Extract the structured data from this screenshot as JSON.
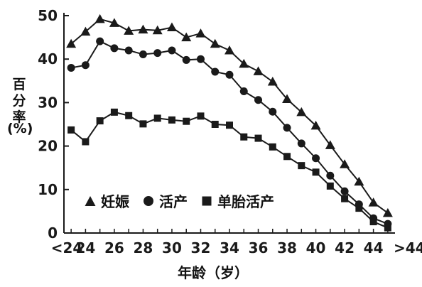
{
  "chart_data": {
    "type": "line",
    "ylabel_lines": [
      "百分率",
      "(%)"
    ],
    "xlabel": "年龄（岁）",
    "x": [
      23,
      24,
      25,
      26,
      27,
      28,
      29,
      30,
      31,
      32,
      33,
      34,
      35,
      36,
      37,
      38,
      39,
      40,
      41,
      42,
      43,
      44,
      45
    ],
    "xlim": [
      22.5,
      45.5
    ],
    "x_ticks": [
      "<24",
      "24",
      "26",
      "28",
      "30",
      "32",
      "34",
      "36",
      "38",
      "40",
      "42",
      "44",
      ">44"
    ],
    "x_tick_values": [
      22.7,
      24,
      26,
      28,
      30,
      32,
      34,
      36,
      38,
      40,
      42,
      44,
      46.5
    ],
    "ylim": [
      0,
      50
    ],
    "y_ticks": [
      0,
      10,
      20,
      30,
      40,
      50
    ],
    "grid": false,
    "legend_position": "bottom-left",
    "series": [
      {
        "name": "妊娠",
        "marker": "triangle",
        "values": [
          43.5,
          46.3,
          49.2,
          48.3,
          46.5,
          46.8,
          46.6,
          47.3,
          45.0,
          45.9,
          43.5,
          42.0,
          38.9,
          37.2,
          34.8,
          30.8,
          27.8,
          24.7,
          20.2,
          15.8,
          11.8,
          7.0,
          4.6
        ]
      },
      {
        "name": "活产",
        "marker": "circle",
        "values": [
          38.0,
          38.6,
          44.1,
          42.5,
          42.0,
          41.1,
          41.4,
          42.0,
          39.8,
          40.0,
          37.1,
          36.4,
          32.6,
          30.6,
          27.9,
          24.2,
          20.6,
          17.2,
          13.2,
          9.6,
          6.6,
          3.4,
          2.1
        ]
      },
      {
        "name": "单胎活产",
        "marker": "square",
        "values": [
          23.7,
          21.0,
          25.8,
          27.8,
          27.0,
          25.1,
          26.4,
          26.0,
          25.7,
          26.9,
          25.0,
          24.8,
          22.1,
          21.8,
          19.8,
          17.6,
          15.5,
          14.0,
          10.8,
          7.9,
          5.7,
          2.6,
          1.2
        ]
      }
    ],
    "colors": {
      "ink": "#1a1a1a"
    }
  }
}
